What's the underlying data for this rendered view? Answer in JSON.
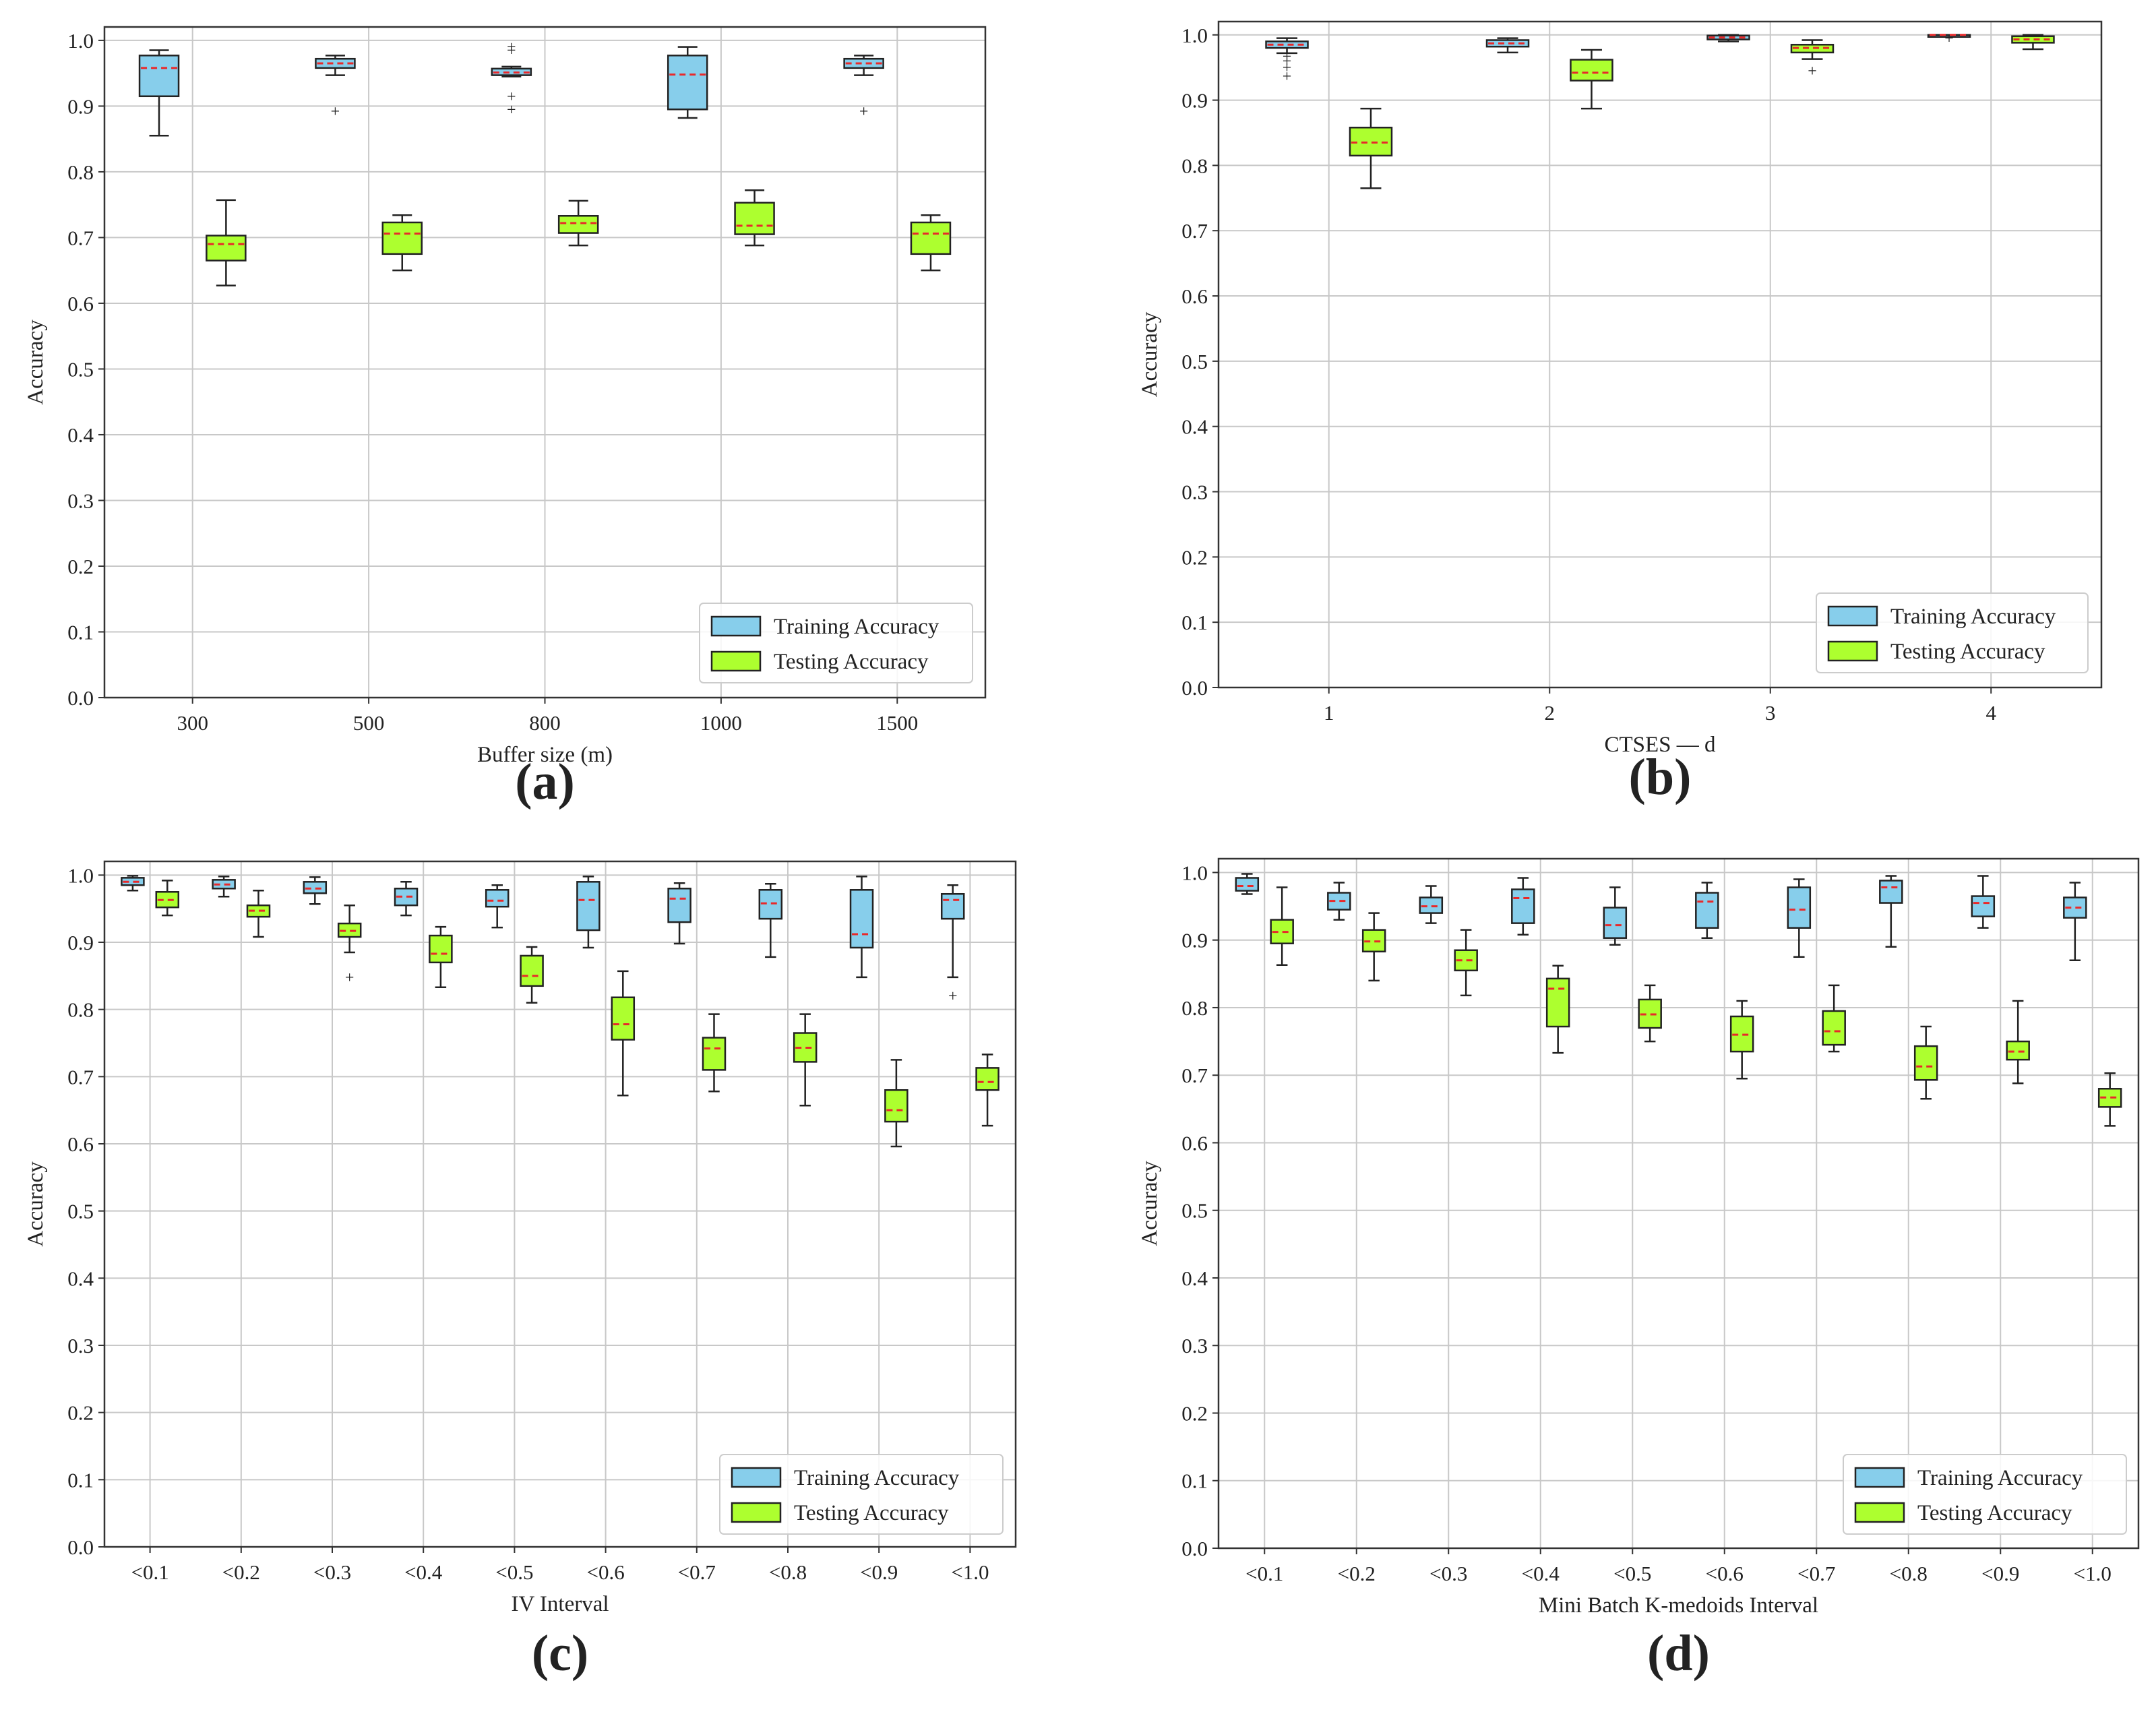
{
  "colors": {
    "training_box": "#87ceeb",
    "testing_box": "#adff2f",
    "median": "#e8292a",
    "grid": "#c8c8c8",
    "axis": "#333333"
  },
  "chart_data": [
    {
      "type": "box",
      "panel_label": "(a)",
      "xlabel": "Buffer size  (m)",
      "ylabel": "Accuracy",
      "ylim": [
        0,
        1.0
      ],
      "yticks": [
        "0.0",
        "0.1",
        "0.2",
        "0.3",
        "0.4",
        "0.5",
        "0.6",
        "0.7",
        "0.8",
        "0.9",
        "1.0"
      ],
      "categories": [
        "300",
        "500",
        "800",
        "1000",
        "1500"
      ],
      "legend": {
        "position": "lower-right",
        "entries": [
          "Training Accuracy",
          "Testing Accuracy"
        ]
      },
      "series": [
        {
          "name": "Training Accuracy",
          "boxes": [
            {
              "whislo": 0.855,
              "q1": 0.915,
              "med": 0.958,
              "q3": 0.977,
              "whishi": 0.985,
              "fliers": []
            },
            {
              "whislo": 0.947,
              "q1": 0.958,
              "med": 0.965,
              "q3": 0.972,
              "whishi": 0.977,
              "fliers": [
                0.892
              ]
            },
            {
              "whislo": 0.945,
              "q1": 0.947,
              "med": 0.951,
              "q3": 0.957,
              "whishi": 0.96,
              "fliers": [
                0.895,
                0.915,
                0.985,
                0.99
              ]
            },
            {
              "whislo": 0.882,
              "q1": 0.895,
              "med": 0.948,
              "q3": 0.977,
              "whishi": 0.99,
              "fliers": []
            },
            {
              "whislo": 0.947,
              "q1": 0.958,
              "med": 0.965,
              "q3": 0.972,
              "whishi": 0.977,
              "fliers": [
                0.892
              ]
            }
          ]
        },
        {
          "name": "Testing Accuracy",
          "boxes": [
            {
              "whislo": 0.627,
              "q1": 0.665,
              "med": 0.69,
              "q3": 0.703,
              "whishi": 0.757,
              "fliers": []
            },
            {
              "whislo": 0.65,
              "q1": 0.675,
              "med": 0.706,
              "q3": 0.723,
              "whishi": 0.734,
              "fliers": []
            },
            {
              "whislo": 0.688,
              "q1": 0.707,
              "med": 0.722,
              "q3": 0.733,
              "whishi": 0.756,
              "fliers": []
            },
            {
              "whislo": 0.688,
              "q1": 0.705,
              "med": 0.718,
              "q3": 0.753,
              "whishi": 0.772,
              "fliers": []
            },
            {
              "whislo": 0.65,
              "q1": 0.675,
              "med": 0.706,
              "q3": 0.723,
              "whishi": 0.734,
              "fliers": []
            }
          ]
        }
      ]
    },
    {
      "type": "box",
      "panel_label": "(b)",
      "xlabel": "CTSES — d",
      "ylabel": "Accuracy",
      "ylim": [
        0,
        1.0
      ],
      "yticks": [
        "0.0",
        "0.1",
        "0.2",
        "0.3",
        "0.4",
        "0.5",
        "0.6",
        "0.7",
        "0.8",
        "0.9",
        "1.0"
      ],
      "categories": [
        "1",
        "2",
        "3",
        "4"
      ],
      "legend": {
        "position": "lower-right",
        "entries": [
          "Training Accuracy",
          "Testing Accuracy"
        ]
      },
      "series": [
        {
          "name": "Training Accuracy",
          "boxes": [
            {
              "whislo": 0.972,
              "q1": 0.98,
              "med": 0.985,
              "q3": 0.99,
              "whishi": 0.995,
              "fliers": [
                0.937,
                0.95,
                0.96,
                0.967
              ]
            },
            {
              "whislo": 0.973,
              "q1": 0.982,
              "med": 0.987,
              "q3": 0.992,
              "whishi": 0.995,
              "fliers": []
            },
            {
              "whislo": 0.99,
              "q1": 0.993,
              "med": 0.996,
              "q3": 0.999,
              "whishi": 1.0,
              "fliers": []
            },
            {
              "whislo": 0.998,
              "q1": 0.999,
              "med": 1.0,
              "q3": 1.0,
              "whishi": 1.0,
              "fliers": [
                0.995
              ]
            }
          ]
        },
        {
          "name": "Testing Accuracy",
          "boxes": [
            {
              "whislo": 0.765,
              "q1": 0.815,
              "med": 0.835,
              "q3": 0.858,
              "whishi": 0.887,
              "fliers": []
            },
            {
              "whislo": 0.887,
              "q1": 0.93,
              "med": 0.942,
              "q3": 0.962,
              "whishi": 0.977,
              "fliers": []
            },
            {
              "whislo": 0.963,
              "q1": 0.973,
              "med": 0.98,
              "q3": 0.985,
              "whishi": 0.992,
              "fliers": [
                0.945
              ]
            },
            {
              "whislo": 0.978,
              "q1": 0.988,
              "med": 0.993,
              "q3": 0.998,
              "whishi": 1.0,
              "fliers": []
            }
          ]
        }
      ]
    },
    {
      "type": "box",
      "panel_label": "(c)",
      "xlabel": "IV Interval",
      "ylabel": "Accuracy",
      "ylim": [
        0,
        1.0
      ],
      "yticks": [
        "0.0",
        "0.1",
        "0.2",
        "0.3",
        "0.4",
        "0.5",
        "0.6",
        "0.7",
        "0.8",
        "0.9",
        "1.0"
      ],
      "categories": [
        "<0.1",
        "<0.2",
        "<0.3",
        "<0.4",
        "<0.5",
        "<0.6",
        "<0.7",
        "<0.8",
        "<0.9",
        "<1.0"
      ],
      "legend": {
        "position": "lower-right",
        "entries": [
          "Training Accuracy",
          "Testing Accuracy"
        ]
      },
      "series": [
        {
          "name": "Training Accuracy",
          "boxes": [
            {
              "whislo": 0.977,
              "q1": 0.985,
              "med": 0.99,
              "q3": 0.996,
              "whishi": 0.999,
              "fliers": []
            },
            {
              "whislo": 0.968,
              "q1": 0.98,
              "med": 0.986,
              "q3": 0.993,
              "whishi": 0.998,
              "fliers": []
            },
            {
              "whislo": 0.957,
              "q1": 0.973,
              "med": 0.98,
              "q3": 0.99,
              "whishi": 0.997,
              "fliers": []
            },
            {
              "whislo": 0.94,
              "q1": 0.955,
              "med": 0.968,
              "q3": 0.98,
              "whishi": 0.99,
              "fliers": []
            },
            {
              "whislo": 0.922,
              "q1": 0.953,
              "med": 0.962,
              "q3": 0.978,
              "whishi": 0.985,
              "fliers": []
            },
            {
              "whislo": 0.892,
              "q1": 0.918,
              "med": 0.963,
              "q3": 0.99,
              "whishi": 0.998,
              "fliers": []
            },
            {
              "whislo": 0.898,
              "q1": 0.93,
              "med": 0.965,
              "q3": 0.98,
              "whishi": 0.988,
              "fliers": []
            },
            {
              "whislo": 0.878,
              "q1": 0.935,
              "med": 0.958,
              "q3": 0.978,
              "whishi": 0.987,
              "fliers": []
            },
            {
              "whislo": 0.848,
              "q1": 0.892,
              "med": 0.912,
              "q3": 0.978,
              "whishi": 0.998,
              "fliers": []
            },
            {
              "whislo": 0.848,
              "q1": 0.935,
              "med": 0.963,
              "q3": 0.972,
              "whishi": 0.985,
              "fliers": [
                0.82
              ]
            }
          ]
        },
        {
          "name": "Testing Accuracy",
          "boxes": [
            {
              "whislo": 0.94,
              "q1": 0.952,
              "med": 0.963,
              "q3": 0.975,
              "whishi": 0.992,
              "fliers": []
            },
            {
              "whislo": 0.908,
              "q1": 0.938,
              "med": 0.947,
              "q3": 0.955,
              "whishi": 0.977,
              "fliers": []
            },
            {
              "whislo": 0.885,
              "q1": 0.908,
              "med": 0.917,
              "q3": 0.928,
              "whishi": 0.955,
              "fliers": [
                0.848
              ]
            },
            {
              "whislo": 0.833,
              "q1": 0.87,
              "med": 0.883,
              "q3": 0.91,
              "whishi": 0.923,
              "fliers": []
            },
            {
              "whislo": 0.81,
              "q1": 0.835,
              "med": 0.85,
              "q3": 0.88,
              "whishi": 0.893,
              "fliers": []
            },
            {
              "whislo": 0.672,
              "q1": 0.755,
              "med": 0.778,
              "q3": 0.818,
              "whishi": 0.857,
              "fliers": []
            },
            {
              "whislo": 0.678,
              "q1": 0.71,
              "med": 0.742,
              "q3": 0.758,
              "whishi": 0.793,
              "fliers": []
            },
            {
              "whislo": 0.657,
              "q1": 0.722,
              "med": 0.743,
              "q3": 0.765,
              "whishi": 0.793,
              "fliers": []
            },
            {
              "whislo": 0.596,
              "q1": 0.633,
              "med": 0.65,
              "q3": 0.68,
              "whishi": 0.725,
              "fliers": []
            },
            {
              "whislo": 0.627,
              "q1": 0.68,
              "med": 0.692,
              "q3": 0.713,
              "whishi": 0.733,
              "fliers": []
            }
          ]
        }
      ]
    },
    {
      "type": "box",
      "panel_label": "(d)",
      "xlabel": "Mini Batch K-medoids Interval",
      "ylabel": "Accuracy",
      "ylim": [
        0,
        1.0
      ],
      "yticks": [
        "0.0",
        "0.1",
        "0.2",
        "0.3",
        "0.4",
        "0.5",
        "0.6",
        "0.7",
        "0.8",
        "0.9",
        "1.0"
      ],
      "categories": [
        "<0.1",
        "<0.2",
        "<0.3",
        "<0.4",
        "<0.5",
        "<0.6",
        "<0.7",
        "<0.8",
        "<0.9",
        "<1.0"
      ],
      "legend": {
        "position": "lower-right",
        "entries": [
          "Training Accuracy",
          "Testing Accuracy"
        ]
      },
      "series": [
        {
          "name": "Training Accuracy",
          "boxes": [
            {
              "whislo": 0.968,
              "q1": 0.973,
              "med": 0.98,
              "q3": 0.992,
              "whishi": 0.998,
              "fliers": []
            },
            {
              "whislo": 0.93,
              "q1": 0.945,
              "med": 0.958,
              "q3": 0.97,
              "whishi": 0.985,
              "fliers": []
            },
            {
              "whislo": 0.925,
              "q1": 0.94,
              "med": 0.95,
              "q3": 0.963,
              "whishi": 0.98,
              "fliers": []
            },
            {
              "whislo": 0.908,
              "q1": 0.925,
              "med": 0.962,
              "q3": 0.975,
              "whishi": 0.992,
              "fliers": []
            },
            {
              "whislo": 0.893,
              "q1": 0.903,
              "med": 0.922,
              "q3": 0.948,
              "whishi": 0.978,
              "fliers": []
            },
            {
              "whislo": 0.903,
              "q1": 0.918,
              "med": 0.957,
              "q3": 0.97,
              "whishi": 0.985,
              "fliers": []
            },
            {
              "whislo": 0.875,
              "q1": 0.918,
              "med": 0.945,
              "q3": 0.978,
              "whishi": 0.99,
              "fliers": []
            },
            {
              "whislo": 0.89,
              "q1": 0.955,
              "med": 0.978,
              "q3": 0.988,
              "whishi": 0.995,
              "fliers": []
            },
            {
              "whislo": 0.918,
              "q1": 0.935,
              "med": 0.955,
              "q3": 0.965,
              "whishi": 0.995,
              "fliers": []
            },
            {
              "whislo": 0.87,
              "q1": 0.933,
              "med": 0.948,
              "q3": 0.963,
              "whishi": 0.985,
              "fliers": []
            }
          ]
        },
        {
          "name": "Testing Accuracy",
          "boxes": [
            {
              "whislo": 0.863,
              "q1": 0.895,
              "med": 0.912,
              "q3": 0.93,
              "whishi": 0.978,
              "fliers": []
            },
            {
              "whislo": 0.84,
              "q1": 0.883,
              "med": 0.898,
              "q3": 0.915,
              "whishi": 0.94,
              "fliers": []
            },
            {
              "whislo": 0.818,
              "q1": 0.855,
              "med": 0.87,
              "q3": 0.885,
              "whishi": 0.915,
              "fliers": []
            },
            {
              "whislo": 0.733,
              "q1": 0.772,
              "med": 0.828,
              "q3": 0.843,
              "whishi": 0.862,
              "fliers": []
            },
            {
              "whislo": 0.75,
              "q1": 0.77,
              "med": 0.79,
              "q3": 0.812,
              "whishi": 0.833,
              "fliers": []
            },
            {
              "whislo": 0.695,
              "q1": 0.735,
              "med": 0.76,
              "q3": 0.787,
              "whishi": 0.81,
              "fliers": []
            },
            {
              "whislo": 0.735,
              "q1": 0.745,
              "med": 0.765,
              "q3": 0.795,
              "whishi": 0.833,
              "fliers": []
            },
            {
              "whislo": 0.665,
              "q1": 0.693,
              "med": 0.713,
              "q3": 0.743,
              "whishi": 0.772,
              "fliers": []
            },
            {
              "whislo": 0.688,
              "q1": 0.723,
              "med": 0.735,
              "q3": 0.75,
              "whishi": 0.81,
              "fliers": []
            },
            {
              "whislo": 0.625,
              "q1": 0.653,
              "med": 0.667,
              "q3": 0.68,
              "whishi": 0.703,
              "fliers": []
            }
          ]
        }
      ]
    }
  ]
}
